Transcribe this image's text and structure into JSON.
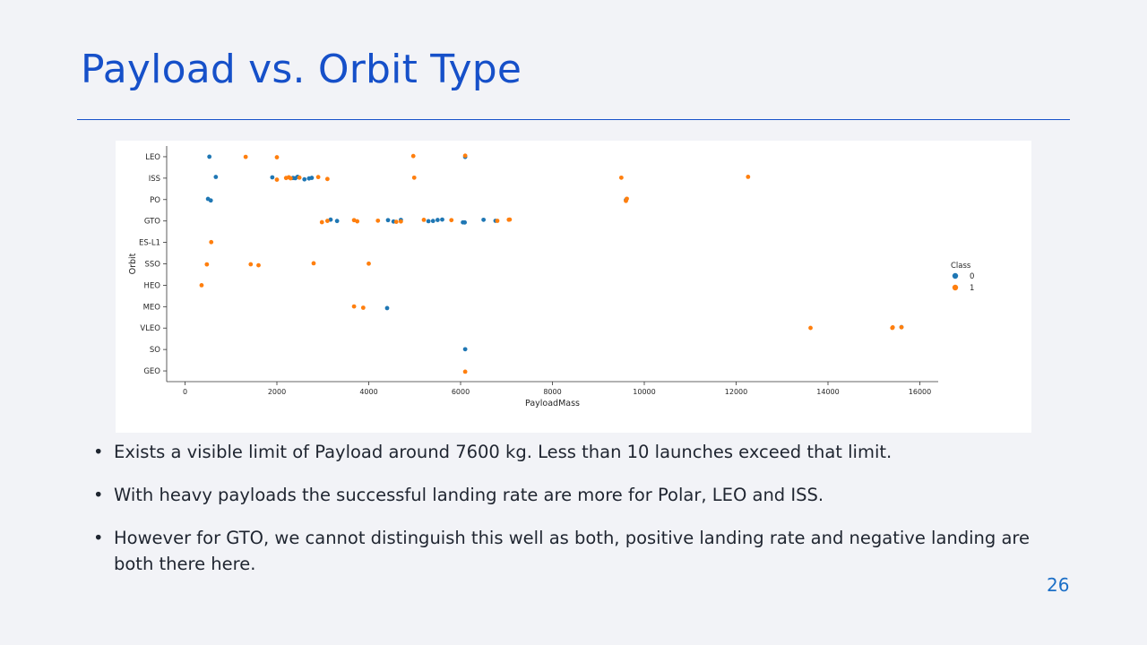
{
  "slide": {
    "title": "Payload vs. Orbit Type",
    "bullet_symbol": "•",
    "bullets": [
      "Exists a visible limit of Payload around 7600 kg. Less than 10 launches exceed that limit.",
      "With heavy payloads the successful landing rate are more for Polar, LEO and ISS.",
      "However for GTO, we cannot distinguish this well as both, positive landing rate and negative landing are both there here."
    ],
    "page_number": "26"
  },
  "chart_data": {
    "type": "scatter",
    "xlabel": "PayloadMass",
    "ylabel": "Orbit",
    "xlim": [
      -400,
      16400
    ],
    "xticks": [
      0,
      2000,
      4000,
      6000,
      8000,
      10000,
      12000,
      14000,
      16000
    ],
    "categories": [
      "LEO",
      "ISS",
      "PO",
      "GTO",
      "ES-L1",
      "SSO",
      "HEO",
      "MEO",
      "VLEO",
      "SO",
      "GEO"
    ],
    "legend": {
      "title": "Class",
      "placement": "right"
    },
    "colors": {
      "0": "#1f77b4",
      "1": "#ff7f0e"
    },
    "series": [
      {
        "name": "0",
        "points": [
          [
            530,
            "LEO"
          ],
          [
            6100,
            "LEO"
          ],
          [
            670,
            "ISS"
          ],
          [
            1900,
            "ISS"
          ],
          [
            2350,
            "ISS"
          ],
          [
            2400,
            "ISS"
          ],
          [
            2450,
            "ISS"
          ],
          [
            2600,
            "ISS"
          ],
          [
            2700,
            "ISS"
          ],
          [
            2760,
            "ISS"
          ],
          [
            500,
            "PO"
          ],
          [
            560,
            "PO"
          ],
          [
            9600,
            "PO"
          ],
          [
            3170,
            "GTO"
          ],
          [
            3310,
            "GTO"
          ],
          [
            4420,
            "GTO"
          ],
          [
            4540,
            "GTO"
          ],
          [
            4700,
            "GTO"
          ],
          [
            5300,
            "GTO"
          ],
          [
            5400,
            "GTO"
          ],
          [
            5500,
            "GTO"
          ],
          [
            5600,
            "GTO"
          ],
          [
            6050,
            "GTO"
          ],
          [
            6090,
            "GTO"
          ],
          [
            6500,
            "GTO"
          ],
          [
            6760,
            "GTO"
          ],
          [
            4400,
            "MEO"
          ],
          [
            15600,
            "VLEO"
          ],
          [
            6100,
            "SO"
          ]
        ]
      },
      {
        "name": "1",
        "points": [
          [
            1320,
            "LEO"
          ],
          [
            2000,
            "LEO"
          ],
          [
            4970,
            "LEO"
          ],
          [
            6100,
            "LEO"
          ],
          [
            2000,
            "ISS"
          ],
          [
            2200,
            "ISS"
          ],
          [
            2260,
            "ISS"
          ],
          [
            2300,
            "ISS"
          ],
          [
            2490,
            "ISS"
          ],
          [
            2900,
            "ISS"
          ],
          [
            3100,
            "ISS"
          ],
          [
            4990,
            "ISS"
          ],
          [
            9500,
            "ISS"
          ],
          [
            12260,
            "ISS"
          ],
          [
            9600,
            "PO"
          ],
          [
            9620,
            "PO"
          ],
          [
            2980,
            "GTO"
          ],
          [
            3100,
            "GTO"
          ],
          [
            3680,
            "GTO"
          ],
          [
            3750,
            "GTO"
          ],
          [
            4200,
            "GTO"
          ],
          [
            4600,
            "GTO"
          ],
          [
            4700,
            "GTO"
          ],
          [
            5200,
            "GTO"
          ],
          [
            5800,
            "GTO"
          ],
          [
            6800,
            "GTO"
          ],
          [
            7050,
            "GTO"
          ],
          [
            7070,
            "GTO"
          ],
          [
            570,
            "ES-L1"
          ],
          [
            475,
            "SSO"
          ],
          [
            1430,
            "SSO"
          ],
          [
            1600,
            "SSO"
          ],
          [
            2800,
            "SSO"
          ],
          [
            4000,
            "SSO"
          ],
          [
            360,
            "HEO"
          ],
          [
            3680,
            "MEO"
          ],
          [
            3880,
            "MEO"
          ],
          [
            13620,
            "VLEO"
          ],
          [
            15400,
            "VLEO"
          ],
          [
            15410,
            "VLEO"
          ],
          [
            15600,
            "VLEO"
          ],
          [
            6100,
            "GEO"
          ]
        ]
      }
    ]
  }
}
